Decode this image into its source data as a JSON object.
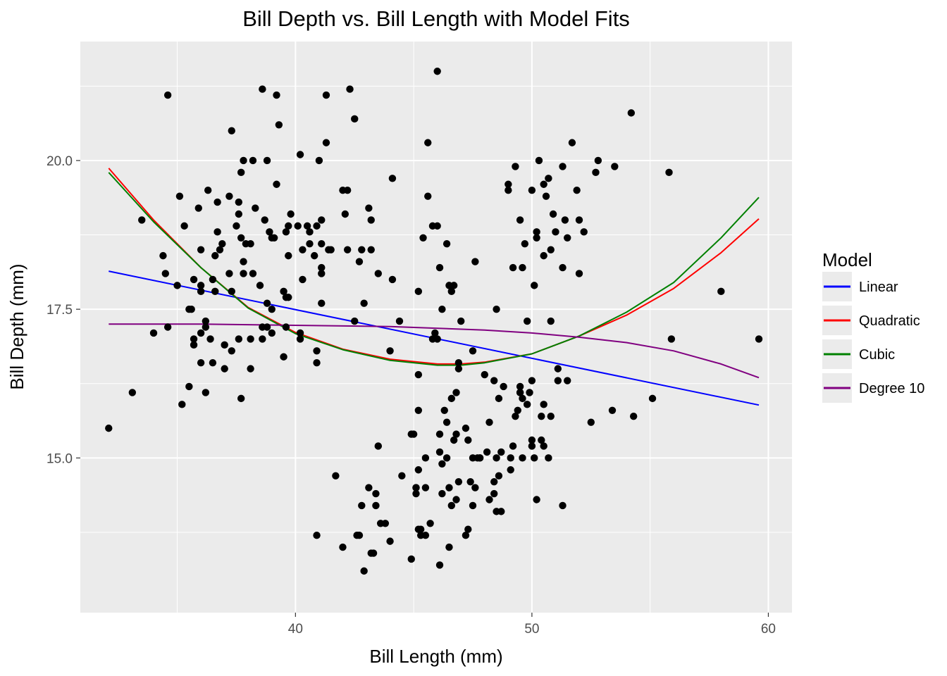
{
  "chart_data": {
    "type": "scatter",
    "title": "Bill Depth vs. Bill Length with Model Fits",
    "xlabel": "Bill Length (mm)",
    "ylabel": "Bill Depth (mm)",
    "xlim": [
      30.9,
      61.0
    ],
    "ylim": [
      12.4,
      22.0
    ],
    "x_ticks": [
      40,
      50,
      60
    ],
    "x_tick_labels": [
      "40",
      "50",
      "60"
    ],
    "x_minor_ticks": [
      35,
      45,
      55
    ],
    "y_ticks": [
      15.0,
      17.5,
      20.0
    ],
    "y_tick_labels": [
      "15.0",
      "17.5",
      "20.0"
    ],
    "y_minor_ticks": [
      13.75,
      16.25,
      18.75,
      21.25
    ],
    "grid": true,
    "panel_color": "#ebebeb",
    "point_color": "#000000",
    "legend": {
      "title": "Model",
      "placement": "right",
      "entries": [
        {
          "label": "Linear",
          "color": "#0000ff"
        },
        {
          "label": "Quadratic",
          "color": "#ff0000"
        },
        {
          "label": "Cubic",
          "color": "#008000"
        },
        {
          "label": "Degree 10",
          "color": "#800080"
        }
      ]
    },
    "series": [
      {
        "name": "Linear",
        "color": "#0000ff",
        "x": [
          32.1,
          59.6
        ],
        "y": [
          18.14,
          15.89
        ]
      },
      {
        "name": "Quadratic",
        "color": "#ff0000",
        "x": [
          32.1,
          34,
          36,
          38,
          40,
          42,
          44,
          46,
          47,
          48,
          50,
          52,
          54,
          56,
          58,
          59.6
        ],
        "y": [
          19.87,
          19.0,
          18.2,
          17.53,
          17.11,
          16.83,
          16.66,
          16.58,
          16.58,
          16.61,
          16.75,
          17.05,
          17.4,
          17.85,
          18.45,
          19.02
        ]
      },
      {
        "name": "Cubic",
        "color": "#008000",
        "x": [
          32.1,
          34,
          36,
          38,
          40,
          42,
          44,
          46,
          47,
          48,
          50,
          52,
          54,
          56,
          58,
          59.6
        ],
        "y": [
          19.8,
          18.97,
          18.2,
          17.52,
          17.09,
          16.82,
          16.64,
          16.56,
          16.56,
          16.6,
          16.75,
          17.05,
          17.45,
          17.95,
          18.7,
          19.38
        ]
      },
      {
        "name": "Degree 10",
        "color": "#800080",
        "x": [
          32.1,
          36,
          40,
          44,
          48,
          50,
          52,
          54,
          56,
          58,
          59.6
        ],
        "y": [
          17.25,
          17.25,
          17.23,
          17.21,
          17.15,
          17.1,
          17.03,
          16.94,
          16.8,
          16.58,
          16.35
        ]
      }
    ],
    "points": [
      [
        32.1,
        15.5
      ],
      [
        33.1,
        16.1
      ],
      [
        33.5,
        19.0
      ],
      [
        34.0,
        17.1
      ],
      [
        34.4,
        18.4
      ],
      [
        34.5,
        18.1
      ],
      [
        34.6,
        21.1
      ],
      [
        34.6,
        17.2
      ],
      [
        35.0,
        17.9
      ],
      [
        35.1,
        19.4
      ],
      [
        35.2,
        15.9
      ],
      [
        35.3,
        18.9
      ],
      [
        35.5,
        17.5
      ],
      [
        35.5,
        16.2
      ],
      [
        35.6,
        17.5
      ],
      [
        35.7,
        18.0
      ],
      [
        35.7,
        17.0
      ],
      [
        35.7,
        16.9
      ],
      [
        35.9,
        19.2
      ],
      [
        36.0,
        18.5
      ],
      [
        36.0,
        17.9
      ],
      [
        36.0,
        17.8
      ],
      [
        36.0,
        17.1
      ],
      [
        36.0,
        16.6
      ],
      [
        36.2,
        17.3
      ],
      [
        36.2,
        17.2
      ],
      [
        36.2,
        16.1
      ],
      [
        36.3,
        19.5
      ],
      [
        36.4,
        17.0
      ],
      [
        36.5,
        18.0
      ],
      [
        36.5,
        16.6
      ],
      [
        36.6,
        18.4
      ],
      [
        36.6,
        17.8
      ],
      [
        36.7,
        19.3
      ],
      [
        36.7,
        18.8
      ],
      [
        36.8,
        18.5
      ],
      [
        36.9,
        18.6
      ],
      [
        37.0,
        16.9
      ],
      [
        37.0,
        16.5
      ],
      [
        37.2,
        19.4
      ],
      [
        37.2,
        18.1
      ],
      [
        37.3,
        20.5
      ],
      [
        37.3,
        17.8
      ],
      [
        37.3,
        16.8
      ],
      [
        37.5,
        18.9
      ],
      [
        37.6,
        19.3
      ],
      [
        37.6,
        19.1
      ],
      [
        37.6,
        17.0
      ],
      [
        37.7,
        19.8
      ],
      [
        37.7,
        18.7
      ],
      [
        37.7,
        16.0
      ],
      [
        37.8,
        20.0
      ],
      [
        37.8,
        18.3
      ],
      [
        37.8,
        18.1
      ],
      [
        37.9,
        18.6
      ],
      [
        38.1,
        18.6
      ],
      [
        38.1,
        17.0
      ],
      [
        38.1,
        16.5
      ],
      [
        38.2,
        20.0
      ],
      [
        38.2,
        18.1
      ],
      [
        38.3,
        19.2
      ],
      [
        38.5,
        17.9
      ],
      [
        38.6,
        21.2
      ],
      [
        38.6,
        17.2
      ],
      [
        38.6,
        17.0
      ],
      [
        38.7,
        19.0
      ],
      [
        38.8,
        20.0
      ],
      [
        38.8,
        17.6
      ],
      [
        38.8,
        17.2
      ],
      [
        38.9,
        18.8
      ],
      [
        39.0,
        18.7
      ],
      [
        39.0,
        17.5
      ],
      [
        39.0,
        17.1
      ],
      [
        39.1,
        18.7
      ],
      [
        39.2,
        21.1
      ],
      [
        39.2,
        19.6
      ],
      [
        39.3,
        20.6
      ],
      [
        39.5,
        17.8
      ],
      [
        39.5,
        16.7
      ],
      [
        39.6,
        18.8
      ],
      [
        39.6,
        17.7
      ],
      [
        39.6,
        17.2
      ],
      [
        39.7,
        18.9
      ],
      [
        39.7,
        17.7
      ],
      [
        39.7,
        18.4
      ],
      [
        39.8,
        19.1
      ],
      [
        40.1,
        18.9
      ],
      [
        40.2,
        20.1
      ],
      [
        40.2,
        17.1
      ],
      [
        40.2,
        17.0
      ],
      [
        40.3,
        18.0
      ],
      [
        40.3,
        18.5
      ],
      [
        40.5,
        18.9
      ],
      [
        40.6,
        18.8
      ],
      [
        40.6,
        18.6
      ],
      [
        40.8,
        18.4
      ],
      [
        40.9,
        18.9
      ],
      [
        40.9,
        16.8
      ],
      [
        40.9,
        16.6
      ],
      [
        41.0,
        20.0
      ],
      [
        41.1,
        19.0
      ],
      [
        41.1,
        18.6
      ],
      [
        41.1,
        18.2
      ],
      [
        41.1,
        18.1
      ],
      [
        41.1,
        17.6
      ],
      [
        41.3,
        21.1
      ],
      [
        41.3,
        20.3
      ],
      [
        41.4,
        18.5
      ],
      [
        41.5,
        18.5
      ],
      [
        42.0,
        19.5
      ],
      [
        42.1,
        19.1
      ],
      [
        42.2,
        19.5
      ],
      [
        42.2,
        18.5
      ],
      [
        42.3,
        21.2
      ],
      [
        42.5,
        20.7
      ],
      [
        42.5,
        17.3
      ],
      [
        42.7,
        18.3
      ],
      [
        42.8,
        18.5
      ],
      [
        42.9,
        17.6
      ],
      [
        43.1,
        19.2
      ],
      [
        43.2,
        19.0
      ],
      [
        43.2,
        18.5
      ],
      [
        43.5,
        18.1
      ],
      [
        44.1,
        19.7
      ],
      [
        44.1,
        18.0
      ],
      [
        44.4,
        17.3
      ],
      [
        45.2,
        17.8
      ],
      [
        45.4,
        18.7
      ],
      [
        45.6,
        20.3
      ],
      [
        45.6,
        19.4
      ],
      [
        45.8,
        18.9
      ],
      [
        45.9,
        17.1
      ],
      [
        46.0,
        21.5
      ],
      [
        46.0,
        18.9
      ],
      [
        46.1,
        18.2
      ],
      [
        46.2,
        17.5
      ],
      [
        46.4,
        18.6
      ],
      [
        46.5,
        17.9
      ],
      [
        46.6,
        17.8
      ],
      [
        46.7,
        17.9
      ],
      [
        46.9,
        16.6
      ],
      [
        47.0,
        17.3
      ],
      [
        47.5,
        16.8
      ],
      [
        47.6,
        18.3
      ],
      [
        48.5,
        17.5
      ],
      [
        49.0,
        19.5
      ],
      [
        49.0,
        19.6
      ],
      [
        49.2,
        18.2
      ],
      [
        49.3,
        19.9
      ],
      [
        49.5,
        19.0
      ],
      [
        49.6,
        18.2
      ],
      [
        49.7,
        18.6
      ],
      [
        49.8,
        17.3
      ],
      [
        50.0,
        19.5
      ],
      [
        50.1,
        17.9
      ],
      [
        50.2,
        18.8
      ],
      [
        50.2,
        18.7
      ],
      [
        50.3,
        20.0
      ],
      [
        50.5,
        19.6
      ],
      [
        50.5,
        18.4
      ],
      [
        50.6,
        19.4
      ],
      [
        50.7,
        19.7
      ],
      [
        50.8,
        18.5
      ],
      [
        50.8,
        17.3
      ],
      [
        50.9,
        19.1
      ],
      [
        51.0,
        18.8
      ],
      [
        51.3,
        19.9
      ],
      [
        51.3,
        18.2
      ],
      [
        51.4,
        19.0
      ],
      [
        51.5,
        18.7
      ],
      [
        51.7,
        20.3
      ],
      [
        51.9,
        19.5
      ],
      [
        52.0,
        19.0
      ],
      [
        52.0,
        18.1
      ],
      [
        52.2,
        18.8
      ],
      [
        52.7,
        19.8
      ],
      [
        52.8,
        20.0
      ],
      [
        53.5,
        19.9
      ],
      [
        54.2,
        20.8
      ],
      [
        55.8,
        19.8
      ],
      [
        58.0,
        17.8
      ],
      [
        46.0,
        17.0
      ],
      [
        45.8,
        17.0
      ],
      [
        44.9,
        13.3
      ],
      [
        43.2,
        13.4
      ],
      [
        45.1,
        14.5
      ],
      [
        46.3,
        15.8
      ],
      [
        42.9,
        13.1
      ],
      [
        46.1,
        15.1
      ],
      [
        47.8,
        15.0
      ],
      [
        48.2,
        14.3
      ],
      [
        50.0,
        15.3
      ],
      [
        47.3,
        15.3
      ],
      [
        42.8,
        14.2
      ],
      [
        45.1,
        14.5
      ],
      [
        43.4,
        14.4
      ],
      [
        45.2,
        13.8
      ],
      [
        44.9,
        15.4
      ],
      [
        45.2,
        14.8
      ],
      [
        46.5,
        14.5
      ],
      [
        48.7,
        15.1
      ],
      [
        50.5,
        15.9
      ],
      [
        46.1,
        13.2
      ],
      [
        50.0,
        16.3
      ],
      [
        46.2,
        14.4
      ],
      [
        48.4,
        16.3
      ],
      [
        46.4,
        15.6
      ],
      [
        45.5,
        14.5
      ],
      [
        49.1,
        14.8
      ],
      [
        45.5,
        15.0
      ],
      [
        47.6,
        14.5
      ],
      [
        47.2,
        13.7
      ],
      [
        45.3,
        13.7
      ],
      [
        45.7,
        13.9
      ],
      [
        46.1,
        15.4
      ],
      [
        46.2,
        14.9
      ],
      [
        47.3,
        13.8
      ],
      [
        46.6,
        14.2
      ],
      [
        42.0,
        13.5
      ],
      [
        45.5,
        13.7
      ],
      [
        49.1,
        15.0
      ],
      [
        46.8,
        14.3
      ],
      [
        47.4,
        14.6
      ],
      [
        43.3,
        13.4
      ],
      [
        40.9,
        13.7
      ],
      [
        44.5,
        14.7
      ],
      [
        50.4,
        15.3
      ],
      [
        50.5,
        15.2
      ],
      [
        49.6,
        15.0
      ],
      [
        50.8,
        15.7
      ],
      [
        46.9,
        14.6
      ],
      [
        48.6,
        14.7
      ],
      [
        45.2,
        15.8
      ],
      [
        47.5,
        14.2
      ],
      [
        47.7,
        15.0
      ],
      [
        46.5,
        13.5
      ],
      [
        48.4,
        14.6
      ],
      [
        43.6,
        13.9
      ],
      [
        49.5,
        16.1
      ],
      [
        50.0,
        15.2
      ],
      [
        43.5,
        15.2
      ],
      [
        49.2,
        15.2
      ],
      [
        45.3,
        13.8
      ],
      [
        46.8,
        16.1
      ],
      [
        48.7,
        14.1
      ],
      [
        48.4,
        14.4
      ],
      [
        49.3,
        15.7
      ],
      [
        48.5,
        14.1
      ],
      [
        49.5,
        16.2
      ],
      [
        49.8,
        15.9
      ],
      [
        50.7,
        15.0
      ],
      [
        51.3,
        14.2
      ],
      [
        45.2,
        16.4
      ],
      [
        49.4,
        15.8
      ],
      [
        52.5,
        15.6
      ],
      [
        50.1,
        15.0
      ],
      [
        46.8,
        15.4
      ],
      [
        43.8,
        13.9
      ],
      [
        48.5,
        15.0
      ],
      [
        46.6,
        16.0
      ],
      [
        48.2,
        15.6
      ],
      [
        47.5,
        15.0
      ],
      [
        50.2,
        14.3
      ],
      [
        48.1,
        15.1
      ],
      [
        49.9,
        16.1
      ],
      [
        51.1,
        16.5
      ],
      [
        55.1,
        16.0
      ],
      [
        54.3,
        15.7
      ],
      [
        53.4,
        15.8
      ],
      [
        55.9,
        17.0
      ],
      [
        59.6,
        17.0
      ],
      [
        48.8,
        16.2
      ],
      [
        50.4,
        15.7
      ],
      [
        51.1,
        16.3
      ],
      [
        51.5,
        16.3
      ],
      [
        49.6,
        16.0
      ],
      [
        48.6,
        16.0
      ],
      [
        47.8,
        15.0
      ],
      [
        41.7,
        14.7
      ],
      [
        42.7,
        13.7
      ],
      [
        43.1,
        14.5
      ],
      [
        42.6,
        13.7
      ],
      [
        44.0,
        13.6
      ],
      [
        46.7,
        15.3
      ],
      [
        46.4,
        15.0
      ],
      [
        46.9,
        16.5
      ],
      [
        45.0,
        15.4
      ],
      [
        45.1,
        14.4
      ],
      [
        47.2,
        15.5
      ],
      [
        43.4,
        14.2
      ],
      [
        44.0,
        16.8
      ],
      [
        48.0,
        16.4
      ],
      [
        49.5,
        16.1
      ]
    ]
  }
}
